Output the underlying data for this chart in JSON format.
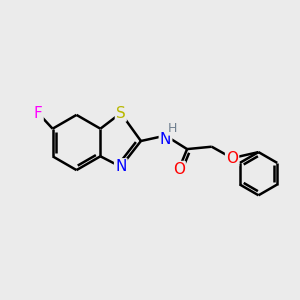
{
  "bg_color": "#ebebeb",
  "bond_color": "#000000",
  "bond_width": 1.8,
  "atom_colors": {
    "F": "#ff00ff",
    "S": "#b8b800",
    "N": "#0000ff",
    "O": "#ff0000",
    "H": "#708090",
    "C": "#000000"
  },
  "font_size": 11,
  "font_size_H": 9
}
